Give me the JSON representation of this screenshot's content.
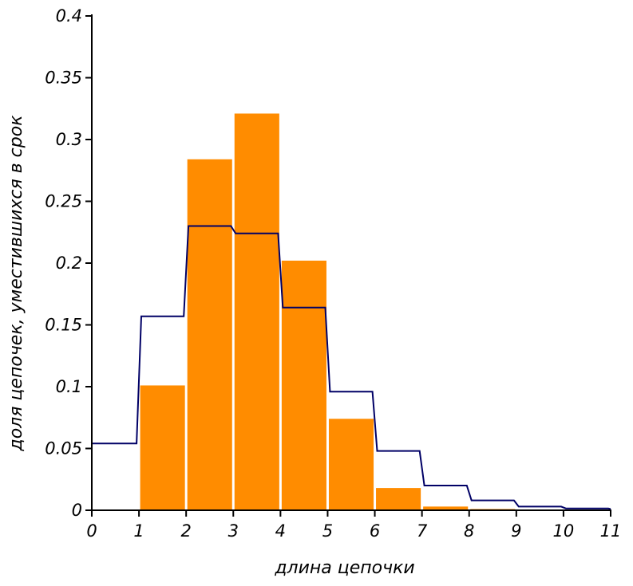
{
  "chart_data": {
    "type": "bar",
    "xlabel": "длина цепочки",
    "ylabel": "доля цепочек, уместившихся в срок",
    "xlim": [
      0,
      11
    ],
    "ylim": [
      0,
      0.4
    ],
    "x_ticks": [
      "0",
      "1",
      "2",
      "3",
      "4",
      "5",
      "6",
      "7",
      "8",
      "9",
      "10",
      "11"
    ],
    "y_ticks": [
      "0",
      "0.05",
      "0.1",
      "0.15",
      "0.2",
      "0.25",
      "0.3",
      "0.35",
      "0.4"
    ],
    "bars": {
      "x_start": [
        1,
        2,
        3,
        4,
        5,
        6,
        7,
        8
      ],
      "x_end": [
        2,
        3,
        4,
        5,
        6,
        7,
        8,
        9
      ],
      "values": [
        0.101,
        0.284,
        0.321,
        0.202,
        0.074,
        0.018,
        0.003,
        0.001
      ],
      "color": "#ff8c00"
    },
    "line": {
      "color": "#000066",
      "x": [
        0,
        0.95,
        1.05,
        1.95,
        2.05,
        2.95,
        3.05,
        3.95,
        4.05,
        4.95,
        5.05,
        5.95,
        6.05,
        6.95,
        7.05,
        7.95,
        8.05,
        8.95,
        9.05,
        9.95,
        10.05,
        10.95,
        11
      ],
      "y": [
        0.054,
        0.054,
        0.157,
        0.157,
        0.23,
        0.23,
        0.224,
        0.224,
        0.164,
        0.164,
        0.096,
        0.096,
        0.048,
        0.048,
        0.02,
        0.02,
        0.008,
        0.008,
        0.003,
        0.003,
        0.0015,
        0.0015,
        0.001
      ]
    },
    "grid": false,
    "legend": "none"
  }
}
